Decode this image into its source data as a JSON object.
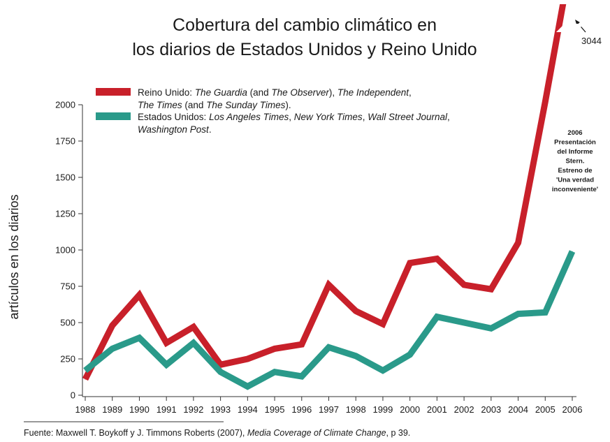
{
  "chart_data": {
    "type": "line",
    "title_lines": [
      "Cobertura del cambio climático en",
      "los diarios de Estados Unidos y Reino Unido"
    ],
    "ylabel": "artículos en los diarios",
    "xlabel": "",
    "ylim": [
      0,
      2000
    ],
    "yticks": [
      0,
      250,
      500,
      750,
      1000,
      1250,
      1500,
      1750,
      2000
    ],
    "x": [
      1988,
      1989,
      1990,
      1991,
      1992,
      1993,
      1994,
      1995,
      1996,
      1997,
      1998,
      1999,
      2000,
      2001,
      2002,
      2003,
      2004,
      2005,
      2006
    ],
    "series": [
      {
        "name": "Reino Unido",
        "color": "#c8202a",
        "values": [
          110,
          480,
          690,
          360,
          470,
          210,
          250,
          320,
          350,
          760,
          580,
          490,
          910,
          940,
          760,
          730,
          1050,
          2020,
          3044
        ]
      },
      {
        "name": "Estados Unidos",
        "color": "#2a9a8a",
        "values": [
          170,
          320,
          395,
          210,
          360,
          160,
          60,
          160,
          130,
          330,
          270,
          170,
          280,
          540,
          500,
          460,
          560,
          570,
          990
        ]
      }
    ],
    "legend": [
      {
        "color": "#c8202a",
        "lines": [
          [
            {
              "t": "Reino Unido: ",
              "i": false
            },
            {
              "t": "The Guardia",
              "i": true
            },
            {
              "t": " (and ",
              "i": false
            },
            {
              "t": "The Observer",
              "i": true
            },
            {
              "t": "), ",
              "i": false
            },
            {
              "t": "The Independent",
              "i": true
            },
            {
              "t": ",",
              "i": false
            }
          ],
          [
            {
              "t": "The Times",
              "i": true
            },
            {
              "t": " (and ",
              "i": false
            },
            {
              "t": "The Sunday Times",
              "i": true
            },
            {
              "t": ").",
              "i": false
            }
          ]
        ]
      },
      {
        "color": "#2a9a8a",
        "lines": [
          [
            {
              "t": "Estados Unidos: ",
              "i": false
            },
            {
              "t": "Los Angeles Times",
              "i": true
            },
            {
              "t": ", ",
              "i": false
            },
            {
              "t": "New York Times",
              "i": true
            },
            {
              "t": ", ",
              "i": false
            },
            {
              "t": "Wall Street Journal",
              "i": true
            },
            {
              "t": ",",
              "i": false
            }
          ],
          [
            {
              "t": "Washington Post",
              "i": true
            },
            {
              "t": ".",
              "i": false
            }
          ]
        ]
      }
    ],
    "annotation_lines": [
      "2006",
      "Presentación",
      "del Informe",
      "Stern.",
      "Estreno de",
      "'Una verdad",
      "inconveniente'"
    ],
    "peak_label": "3044",
    "source": [
      {
        "t": "Fuente: Maxwell T. Boykoff y J. Timmons Roberts (2007), ",
        "i": false
      },
      {
        "t": "Media Coverage of Climate Change",
        "i": true
      },
      {
        "t": ", p 39.",
        "i": false
      }
    ]
  }
}
